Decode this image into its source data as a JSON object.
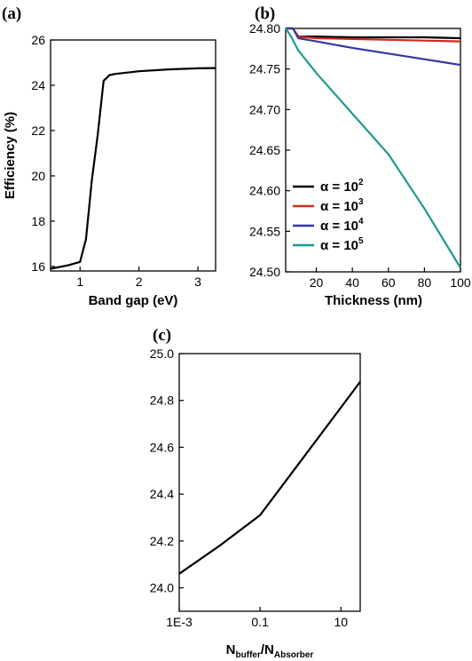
{
  "figure": {
    "panel_labels": [
      "(a)",
      "(b)",
      "(c)"
    ]
  },
  "chart_data": [
    {
      "panel": "(a)",
      "type": "line",
      "xlabel": "Band gap (eV)",
      "ylabel": "Efficiency (%)",
      "xlim": [
        0.5,
        3.3
      ],
      "ylim": [
        15.8,
        26
      ],
      "x_ticks": [
        1,
        2,
        3
      ],
      "x_tick_labels": [
        "1",
        "2",
        "3"
      ],
      "y_ticks": [
        16,
        18,
        20,
        22,
        24,
        26
      ],
      "y_tick_labels": [
        "16",
        "18",
        "20",
        "22",
        "24",
        "26"
      ],
      "grid": false,
      "series": [
        {
          "color": "#000000",
          "x": [
            0.5,
            0.8,
            1.0,
            1.1,
            1.2,
            1.3,
            1.4,
            1.5,
            1.6,
            2.0,
            2.5,
            3.0,
            3.3
          ],
          "y": [
            15.9,
            16.05,
            16.2,
            17.2,
            19.8,
            21.8,
            24.2,
            24.45,
            24.5,
            24.62,
            24.7,
            24.75,
            24.76
          ]
        }
      ]
    },
    {
      "panel": "(b)",
      "type": "line",
      "xlabel": "Thickness (nm)",
      "ylabel": "",
      "xlim": [
        3,
        100
      ],
      "ylim": [
        24.5,
        24.8
      ],
      "x_ticks": [
        20,
        40,
        60,
        80,
        100
      ],
      "x_tick_labels": [
        "20",
        "40",
        "60",
        "80",
        "100"
      ],
      "y_ticks": [
        24.5,
        24.55,
        24.6,
        24.65,
        24.7,
        24.75,
        24.8
      ],
      "y_tick_labels": [
        "24.50",
        "24.55",
        "24.60",
        "24.65",
        "24.70",
        "24.75",
        "24.80"
      ],
      "grid": false,
      "legend_position": "lower-left",
      "series": [
        {
          "legend_base": "α = 10",
          "legend_exp": "2",
          "color": "#000000",
          "x": [
            3,
            7,
            10,
            20,
            40,
            60,
            80,
            100
          ],
          "y": [
            24.8,
            24.8,
            24.79,
            24.79,
            24.789,
            24.789,
            24.789,
            24.788
          ]
        },
        {
          "legend_base": "α = 10",
          "legend_exp": "3",
          "color": "#cc2a1d",
          "x": [
            3,
            7,
            10,
            20,
            40,
            60,
            80,
            100
          ],
          "y": [
            24.8,
            24.8,
            24.79,
            24.788,
            24.787,
            24.786,
            24.785,
            24.784
          ]
        },
        {
          "legend_base": "α = 10",
          "legend_exp": "4",
          "color": "#3336a8",
          "x": [
            3,
            7,
            10,
            20,
            40,
            60,
            80,
            100
          ],
          "y": [
            24.8,
            24.8,
            24.788,
            24.784,
            24.776,
            24.769,
            24.762,
            24.755
          ]
        },
        {
          "legend_base": "α = 10",
          "legend_exp": "5",
          "color": "#1e9a8c",
          "x": [
            3,
            6,
            10,
            20,
            40,
            60,
            80,
            100
          ],
          "y": [
            24.8,
            24.79,
            24.773,
            24.745,
            24.695,
            24.645,
            24.578,
            24.505
          ]
        }
      ]
    },
    {
      "panel": "(c)",
      "type": "line",
      "xlabel_base": "N",
      "xlabel_sub1": "buffer",
      "xlabel_mid": "/N",
      "xlabel_sub2": "Absorber",
      "ylabel": "",
      "x_scale": "log",
      "xlim": [
        0.001,
        30
      ],
      "ylim": [
        23.9,
        25.0
      ],
      "x_ticks": [
        0.001,
        0.1,
        10
      ],
      "x_tick_labels": [
        "1E-3",
        "0.1",
        "10"
      ],
      "y_ticks": [
        24.0,
        24.2,
        24.4,
        24.6,
        24.8,
        25.0
      ],
      "y_tick_labels": [
        "24.0",
        "24.2",
        "24.4",
        "24.6",
        "24.8",
        "25.0"
      ],
      "grid": false,
      "series": [
        {
          "color": "#000000",
          "x": [
            0.001,
            0.01,
            0.1,
            1,
            10,
            30
          ],
          "y": [
            24.06,
            24.18,
            24.31,
            24.54,
            24.77,
            24.88
          ]
        }
      ]
    }
  ]
}
